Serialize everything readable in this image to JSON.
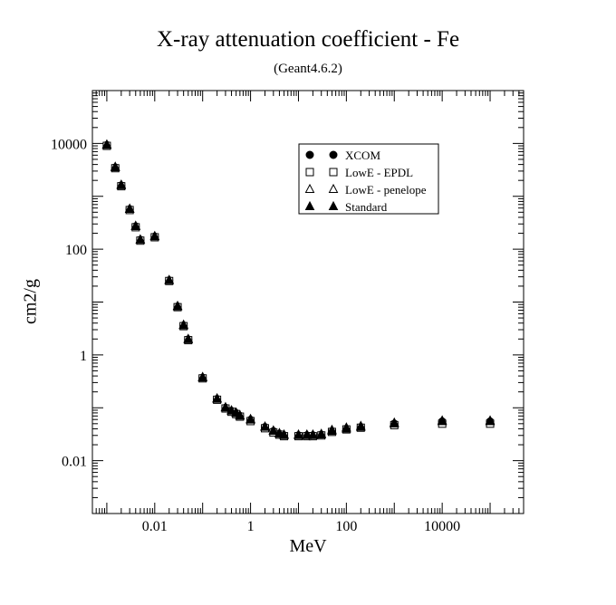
{
  "chart_data": {
    "type": "scatter",
    "title": "X-ray attenuation coefficient - Fe",
    "subtitle": "(Geant4.6.2)",
    "xlabel": "MeV",
    "ylabel": "cm2/g",
    "x_scale": "log",
    "y_scale": "log",
    "xlim": [
      0.0005,
      500000
    ],
    "ylim": [
      0.001,
      100000
    ],
    "x_ticks": [
      0.01,
      1,
      100,
      10000
    ],
    "x_tick_labels": [
      "0.01",
      "1",
      "100",
      "10000"
    ],
    "y_ticks": [
      0.01,
      1,
      100,
      10000
    ],
    "y_tick_labels": [
      "0.01",
      "1",
      "100",
      "10000"
    ],
    "legend_position": "top-right",
    "grid": false,
    "series": [
      {
        "name": "XCOM",
        "marker": "circle-filled",
        "x": [
          0.001,
          0.0015,
          0.002,
          0.003,
          0.004,
          0.005,
          0.01,
          0.02,
          0.03,
          0.04,
          0.05,
          0.1,
          0.2,
          0.3,
          0.4,
          0.5,
          0.6,
          1,
          2,
          3,
          4,
          5,
          10,
          15,
          20,
          30,
          50,
          100,
          200,
          1000,
          10000,
          100000
        ],
        "values": [
          9300,
          3500,
          1600,
          570,
          270,
          150,
          173,
          25.7,
          8.2,
          3.6,
          1.96,
          0.37,
          0.146,
          0.1,
          0.087,
          0.079,
          0.07,
          0.059,
          0.043,
          0.036,
          0.032,
          0.03,
          0.03,
          0.03,
          0.03,
          0.031,
          0.036,
          0.04,
          0.043,
          0.05,
          0.055,
          0.055
        ]
      },
      {
        "name": "LowE - EPDL",
        "marker": "square-open",
        "x": [
          0.001,
          0.0015,
          0.002,
          0.003,
          0.004,
          0.005,
          0.01,
          0.02,
          0.03,
          0.04,
          0.05,
          0.1,
          0.2,
          0.3,
          0.4,
          0.5,
          0.6,
          1,
          2,
          3,
          4,
          5,
          10,
          15,
          20,
          30,
          50,
          100,
          200,
          1000,
          10000,
          100000
        ],
        "values": [
          9000,
          3400,
          1550,
          550,
          260,
          145,
          168,
          25,
          8.0,
          3.5,
          1.9,
          0.36,
          0.142,
          0.097,
          0.084,
          0.076,
          0.068,
          0.056,
          0.041,
          0.034,
          0.031,
          0.029,
          0.029,
          0.029,
          0.029,
          0.03,
          0.035,
          0.039,
          0.042,
          0.047,
          0.05,
          0.05
        ]
      },
      {
        "name": "LowE - penelope",
        "marker": "triangle-open",
        "x": [
          0.001,
          0.0015,
          0.002,
          0.003,
          0.004,
          0.005,
          0.01,
          0.02,
          0.03,
          0.04,
          0.05,
          0.1,
          0.2,
          0.3,
          0.4,
          0.5,
          0.6,
          1,
          2,
          3,
          4,
          5,
          10,
          15,
          20,
          30,
          50,
          100,
          200,
          1000,
          10000,
          100000
        ],
        "values": [
          9500,
          3600,
          1650,
          580,
          275,
          152,
          176,
          26,
          8.4,
          3.7,
          2.0,
          0.38,
          0.15,
          0.102,
          0.089,
          0.081,
          0.072,
          0.061,
          0.044,
          0.037,
          0.033,
          0.031,
          0.031,
          0.031,
          0.031,
          0.032,
          0.038,
          0.042,
          0.045,
          0.052,
          0.057,
          0.057
        ]
      },
      {
        "name": "Standard",
        "marker": "triangle-filled",
        "x": [
          0.001,
          0.0015,
          0.002,
          0.003,
          0.004,
          0.005,
          0.01,
          0.02,
          0.03,
          0.04,
          0.05,
          0.1,
          0.2,
          0.3,
          0.4,
          0.5,
          0.6,
          1,
          2,
          3,
          4,
          5,
          10,
          15,
          20,
          30,
          50,
          100,
          200,
          1000,
          10000,
          100000
        ],
        "values": [
          9300,
          3500,
          1600,
          570,
          270,
          150,
          173,
          25.7,
          8.2,
          3.6,
          1.96,
          0.37,
          0.146,
          0.1,
          0.087,
          0.079,
          0.07,
          0.059,
          0.043,
          0.036,
          0.032,
          0.03,
          0.03,
          0.03,
          0.03,
          0.031,
          0.036,
          0.04,
          0.043,
          0.05,
          0.055,
          0.055
        ]
      }
    ]
  }
}
